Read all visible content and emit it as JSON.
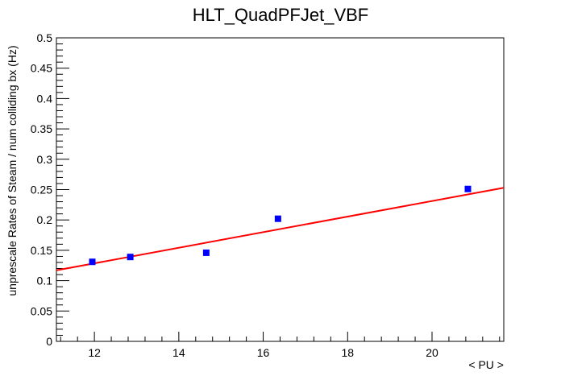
{
  "chart_data": {
    "type": "scatter",
    "title": "HLT_QuadPFJet_VBF",
    "xlabel": "< PU >",
    "ylabel": "unprescale Rates of Steam / num colliding bx (Hz)",
    "xlim": [
      11.1,
      21.7
    ],
    "ylim": [
      0,
      0.5
    ],
    "x_ticks": [
      12,
      14,
      16,
      18,
      20
    ],
    "x_tick_labels": [
      "12",
      "14",
      "16",
      "18",
      "20"
    ],
    "y_ticks": [
      0,
      0.05,
      0.1,
      0.15,
      0.2,
      0.25,
      0.3,
      0.35,
      0.4,
      0.45,
      0.5
    ],
    "y_tick_labels": [
      "0",
      "0.05",
      "0.1",
      "0.15",
      "0.2",
      "0.25",
      "0.3",
      "0.35",
      "0.4",
      "0.45",
      "0.5"
    ],
    "grid": false,
    "legend": "none",
    "series": [
      {
        "marker": "square",
        "color": "#0000ff",
        "points": [
          {
            "x": 11.95,
            "y": 0.131
          },
          {
            "x": 12.85,
            "y": 0.139
          },
          {
            "x": 14.65,
            "y": 0.146
          },
          {
            "x": 16.35,
            "y": 0.202
          },
          {
            "x": 20.85,
            "y": 0.251
          }
        ]
      }
    ],
    "fit": {
      "type": "linear",
      "color": "#ff0000",
      "x": [
        11.1,
        21.7
      ],
      "y": [
        0.117,
        0.253
      ]
    }
  }
}
